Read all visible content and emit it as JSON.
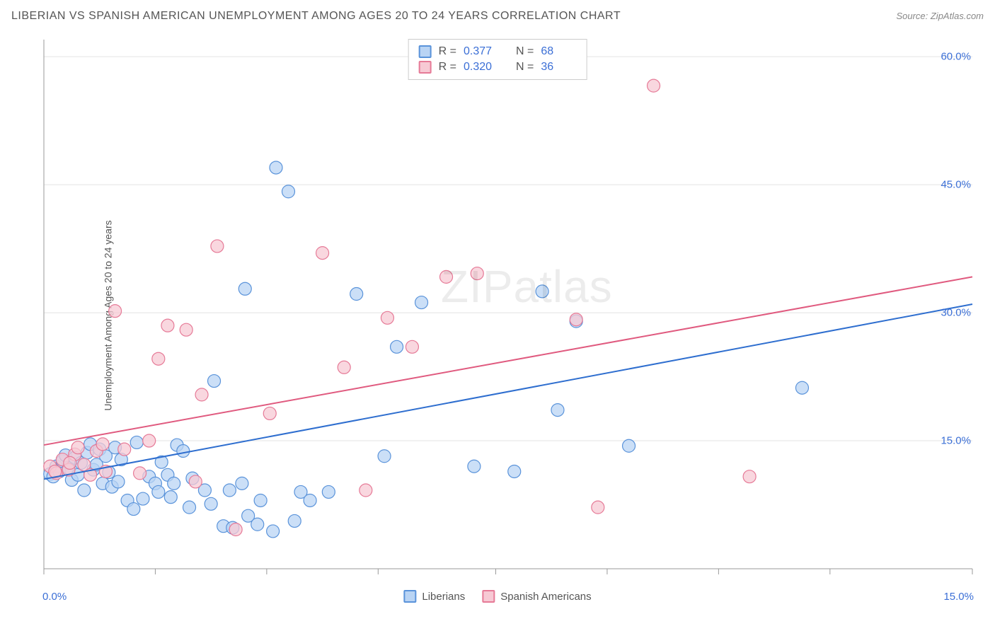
{
  "chart": {
    "type": "scatter",
    "title": "LIBERIAN VS SPANISH AMERICAN UNEMPLOYMENT AMONG AGES 20 TO 24 YEARS CORRELATION CHART",
    "source_label": "Source: ZipAtlas.com",
    "ylabel": "Unemployment Among Ages 20 to 24 years",
    "watermark": "ZIPatlas",
    "xlim": [
      0,
      15
    ],
    "ylim": [
      0,
      62
    ],
    "x_ticks": [
      0,
      1.8,
      3.6,
      5.4,
      7.3,
      9.1,
      10.9,
      12.7,
      15
    ],
    "x_tick_labels_shown": {
      "left": "0.0%",
      "right": "15.0%"
    },
    "y_ticks": [
      15,
      30,
      45,
      60
    ],
    "y_tick_labels": [
      "15.0%",
      "30.0%",
      "45.0%",
      "60.0%"
    ],
    "background_color": "#ffffff",
    "grid_color": "#e3e3e3",
    "axis_color": "#9a9a9a",
    "tick_color": "#9a9a9a",
    "marker_radius": 9,
    "marker_stroke_width": 1.2,
    "series": [
      {
        "id": "liberians",
        "label": "Liberians",
        "fill": "#b9d4f4",
        "stroke": "#5a93da",
        "line_color": "#2e6ecf",
        "line_width": 2,
        "r_value": "0.377",
        "n_value": "68",
        "trend": {
          "x1": 0,
          "y1": 10.5,
          "x2": 15,
          "y2": 31.0
        },
        "points": [
          [
            0.1,
            11.1
          ],
          [
            0.15,
            10.8
          ],
          [
            0.2,
            12.0
          ],
          [
            0.25,
            11.4
          ],
          [
            0.3,
            12.6
          ],
          [
            0.35,
            13.3
          ],
          [
            0.4,
            11.8
          ],
          [
            0.45,
            10.4
          ],
          [
            0.5,
            13.0
          ],
          [
            0.55,
            11.0
          ],
          [
            0.6,
            12.4
          ],
          [
            0.65,
            9.2
          ],
          [
            0.7,
            13.6
          ],
          [
            0.75,
            14.6
          ],
          [
            0.8,
            11.6
          ],
          [
            0.85,
            12.2
          ],
          [
            0.9,
            14.0
          ],
          [
            0.95,
            10.0
          ],
          [
            1.0,
            13.2
          ],
          [
            1.05,
            11.3
          ],
          [
            1.1,
            9.6
          ],
          [
            1.15,
            14.2
          ],
          [
            1.2,
            10.2
          ],
          [
            1.25,
            12.8
          ],
          [
            1.35,
            8.0
          ],
          [
            1.45,
            7.0
          ],
          [
            1.5,
            14.8
          ],
          [
            1.6,
            8.2
          ],
          [
            1.7,
            10.8
          ],
          [
            1.8,
            10.0
          ],
          [
            1.85,
            9.0
          ],
          [
            1.9,
            12.5
          ],
          [
            2.0,
            11.0
          ],
          [
            2.05,
            8.4
          ],
          [
            2.1,
            10.0
          ],
          [
            2.15,
            14.5
          ],
          [
            2.25,
            13.8
          ],
          [
            2.35,
            7.2
          ],
          [
            2.4,
            10.6
          ],
          [
            2.6,
            9.2
          ],
          [
            2.7,
            7.6
          ],
          [
            2.75,
            22.0
          ],
          [
            2.9,
            5.0
          ],
          [
            3.0,
            9.2
          ],
          [
            3.05,
            4.8
          ],
          [
            3.2,
            10.0
          ],
          [
            3.25,
            32.8
          ],
          [
            3.3,
            6.2
          ],
          [
            3.45,
            5.2
          ],
          [
            3.5,
            8.0
          ],
          [
            3.7,
            4.4
          ],
          [
            3.75,
            47.0
          ],
          [
            3.95,
            44.2
          ],
          [
            4.05,
            5.6
          ],
          [
            4.15,
            9.0
          ],
          [
            4.3,
            8.0
          ],
          [
            4.6,
            9.0
          ],
          [
            5.05,
            32.2
          ],
          [
            5.5,
            13.2
          ],
          [
            5.7,
            26.0
          ],
          [
            6.1,
            31.2
          ],
          [
            6.95,
            12.0
          ],
          [
            7.6,
            11.4
          ],
          [
            8.05,
            32.5
          ],
          [
            8.3,
            18.6
          ],
          [
            8.6,
            29.0
          ],
          [
            9.45,
            14.4
          ],
          [
            12.25,
            21.2
          ]
        ]
      },
      {
        "id": "spanish_americans",
        "label": "Spanish Americans",
        "fill": "#f7c9d4",
        "stroke": "#e67a97",
        "line_color": "#e05a7f",
        "line_width": 2,
        "r_value": "0.320",
        "n_value": "36",
        "trend": {
          "x1": 0,
          "y1": 14.5,
          "x2": 15,
          "y2": 34.2
        },
        "points": [
          [
            0.1,
            12.0
          ],
          [
            0.2,
            11.2
          ],
          [
            0.3,
            12.8
          ],
          [
            0.4,
            11.6
          ],
          [
            0.5,
            13.4
          ],
          [
            0.55,
            14.2
          ],
          [
            0.65,
            12.2
          ],
          [
            0.75,
            11.0
          ],
          [
            0.85,
            13.8
          ],
          [
            0.95,
            14.6
          ],
          [
            1.0,
            11.4
          ],
          [
            1.15,
            30.2
          ],
          [
            1.3,
            14.0
          ],
          [
            1.55,
            11.2
          ],
          [
            1.7,
            15.0
          ],
          [
            1.85,
            24.6
          ],
          [
            2.0,
            28.5
          ],
          [
            2.3,
            28.0
          ],
          [
            2.45,
            10.2
          ],
          [
            2.55,
            20.4
          ],
          [
            2.8,
            37.8
          ],
          [
            3.1,
            4.6
          ],
          [
            3.65,
            18.2
          ],
          [
            4.5,
            37.0
          ],
          [
            4.85,
            23.6
          ],
          [
            5.2,
            9.2
          ],
          [
            5.55,
            29.4
          ],
          [
            5.95,
            26.0
          ],
          [
            6.5,
            34.2
          ],
          [
            7.0,
            34.6
          ],
          [
            8.6,
            29.2
          ],
          [
            8.95,
            7.2
          ],
          [
            9.85,
            56.6
          ],
          [
            11.4,
            10.8
          ],
          [
            0.18,
            11.4
          ],
          [
            0.42,
            12.4
          ]
        ]
      }
    ],
    "legend_bottom": [
      {
        "swatch_fill": "#b9d4f4",
        "swatch_stroke": "#5a93da",
        "label": "Liberians"
      },
      {
        "swatch_fill": "#f7c9d4",
        "swatch_stroke": "#e67a97",
        "label": "Spanish Americans"
      }
    ],
    "stats_box": {
      "r_label": "R  =",
      "n_label": "N  =",
      "rows": [
        {
          "swatch_fill": "#b9d4f4",
          "swatch_stroke": "#5a93da",
          "r": "0.377",
          "n": "68"
        },
        {
          "swatch_fill": "#f7c9d4",
          "swatch_stroke": "#e67a97",
          "r": "0.320",
          "n": "36"
        }
      ]
    }
  }
}
